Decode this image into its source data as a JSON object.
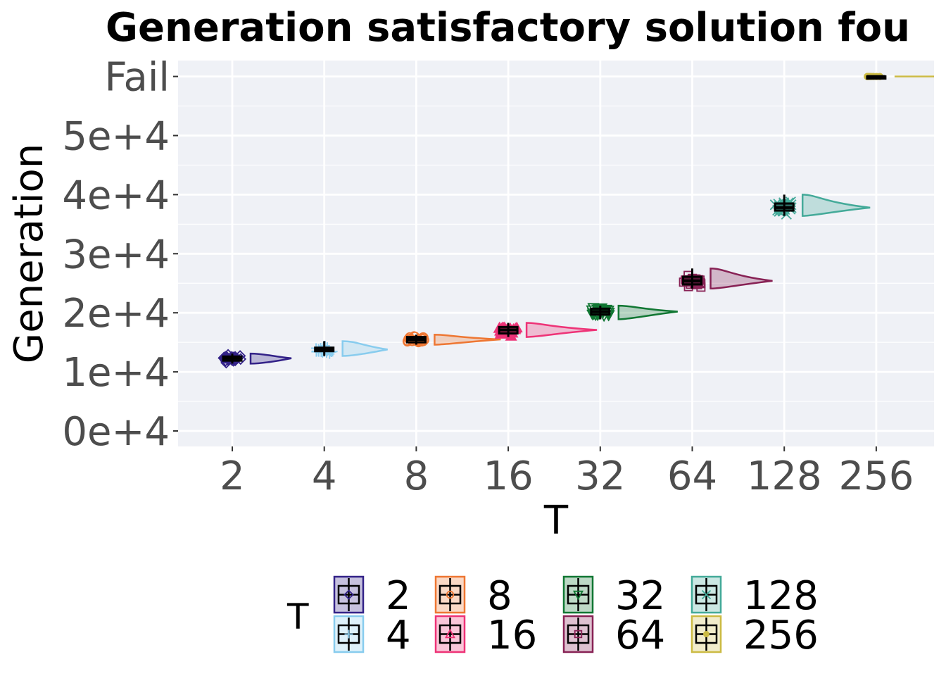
{
  "chart_data": {
    "type": "raincloud",
    "title": "Generation satisfactory solution fou",
    "xlabel": "T",
    "ylabel": "Generation",
    "categories": [
      "2",
      "4",
      "8",
      "16",
      "32",
      "64",
      "128",
      "256"
    ],
    "y_ticks": [
      "0e+4",
      "1e+4",
      "2e+4",
      "3e+4",
      "4e+4",
      "5e+4",
      "Fail"
    ],
    "y_tick_values": [
      0,
      10000,
      20000,
      30000,
      40000,
      50000,
      60000
    ],
    "ylim": [
      -2700,
      63000
    ],
    "fail_value": 60000,
    "grid": true,
    "legend": {
      "title": "T",
      "placement": "bottom",
      "columns": 4
    },
    "series": [
      {
        "name": "2",
        "color": "#332288",
        "marker": "diamond",
        "median": 12300,
        "q1": 11900,
        "q3": 12600,
        "min": 11400,
        "max": 13100,
        "spread": 550,
        "violin_width": 58
      },
      {
        "name": "4",
        "color": "#88CCEE",
        "marker": "plus",
        "median": 13800,
        "q1": 13500,
        "q3": 14100,
        "min": 12700,
        "max": 15200,
        "spread": 650,
        "violin_width": 58
      },
      {
        "name": "8",
        "color": "#EE7733",
        "marker": "circle",
        "median": 15500,
        "q1": 15000,
        "q3": 15900,
        "min": 14600,
        "max": 16300,
        "spread": 550,
        "violin_width": 82
      },
      {
        "name": "16",
        "color": "#EE3377",
        "marker": "triangle-up",
        "median": 17100,
        "q1": 16500,
        "q3": 17600,
        "min": 15900,
        "max": 18300,
        "spread": 800,
        "violin_width": 82
      },
      {
        "name": "32",
        "color": "#117733",
        "marker": "triangle-down",
        "median": 20200,
        "q1": 19700,
        "q3": 20700,
        "min": 18900,
        "max": 21200,
        "spread": 700,
        "violin_width": 60
      },
      {
        "name": "64",
        "color": "#882255",
        "marker": "square",
        "median": 25400,
        "q1": 24800,
        "q3": 26100,
        "min": 24100,
        "max": 27500,
        "spread": 900,
        "violin_width": 58
      },
      {
        "name": "128",
        "color": "#44AA99",
        "marker": "x",
        "median": 37800,
        "q1": 37300,
        "q3": 38500,
        "min": 36400,
        "max": 40000,
        "spread": 1000,
        "violin_width": 60
      },
      {
        "name": "256",
        "color": "#CCBB44",
        "marker": "circle-filled",
        "median": 60000,
        "q1": 60000,
        "q3": 60000,
        "min": 60000,
        "max": 60000,
        "spread": 0,
        "violin_width": 60
      }
    ]
  }
}
